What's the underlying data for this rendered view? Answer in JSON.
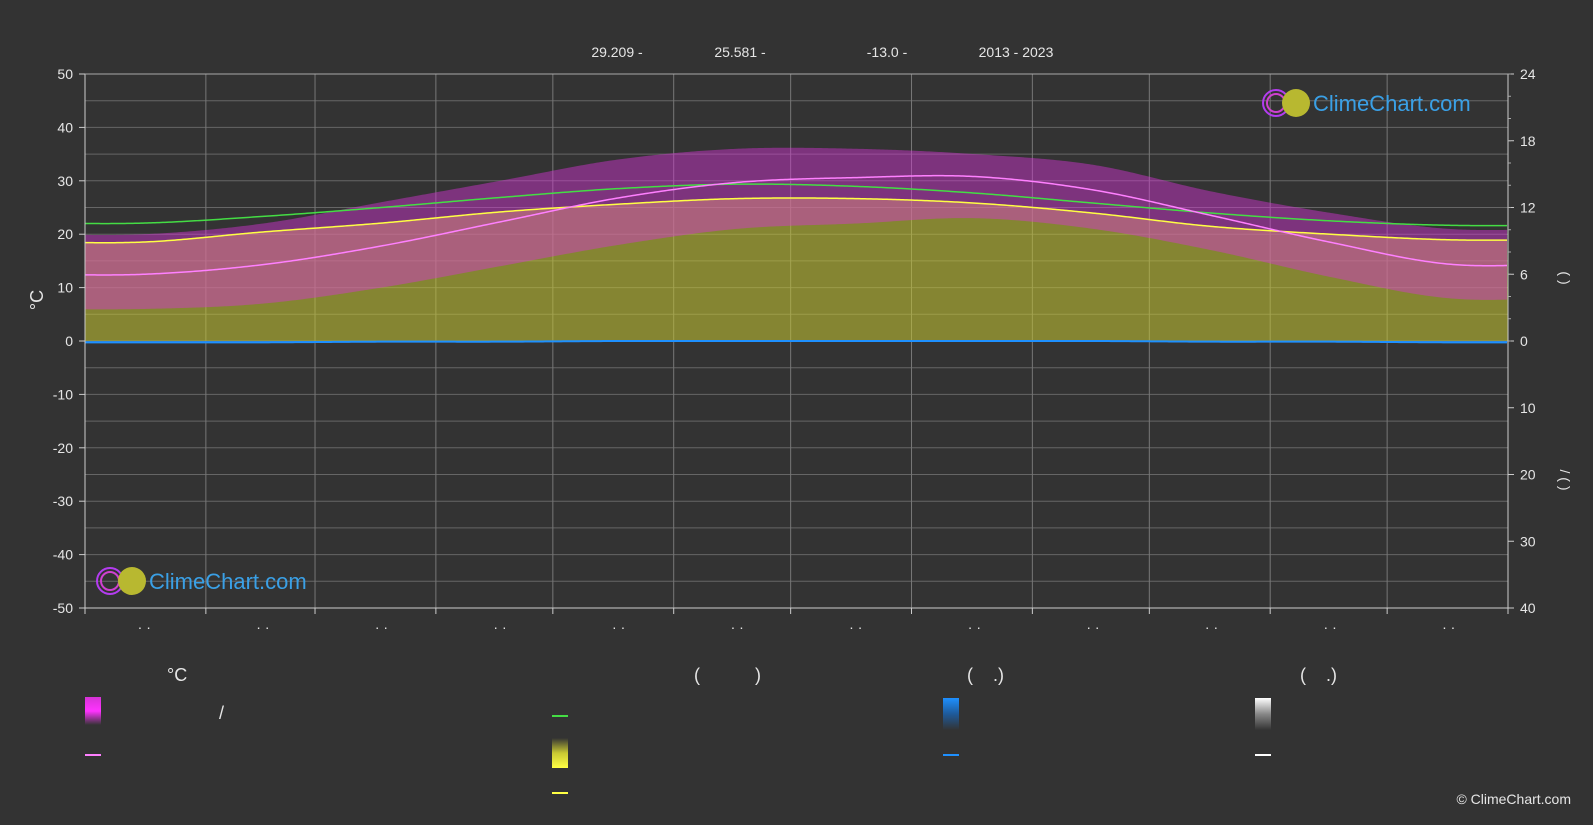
{
  "header": {
    "latitude": "29.209 -",
    "longitude": "25.581 -",
    "elevation": "-13.0 -",
    "years": "2013 - 2023"
  },
  "logo": {
    "text": "ClimeChart.com"
  },
  "copyright": "© ClimeChart.com",
  "legend": {
    "col1_title": "°C",
    "col1_slash": "/",
    "col2_title": "(           )",
    "col3_title": "(    .)",
    "col4_title": "(    .)"
  },
  "colors": {
    "background": "#333333",
    "temp_range": "#d633d6",
    "temp_mean": "#ff80ff",
    "daylight": "#44dd44",
    "sunshine": "#c8c832",
    "sunshine_mean": "#ffff44",
    "rain": "#1e90ff",
    "snow": "#ffffff"
  },
  "chart_data": {
    "type": "line",
    "ylabel": "°C",
    "y_left": {
      "min": -50,
      "max": 50,
      "ticks": [
        50,
        40,
        30,
        20,
        10,
        0,
        -10,
        -20,
        -30,
        -40,
        -50
      ]
    },
    "y_right_top": {
      "min": 0,
      "max": 24,
      "ticks": [
        24,
        18,
        12,
        6,
        0
      ]
    },
    "y_right_bottom": {
      "min": 0,
      "max": 40,
      "ticks": [
        10,
        20,
        30,
        40
      ]
    },
    "right_axis_label_top": "(   )",
    "right_axis_label_bottom": "/   (  )",
    "x_ticks": [
      "· ·",
      "· ·",
      "· ·",
      "· ·",
      "· ·",
      "· ·",
      "· ·",
      "· ·",
      "· ·",
      "· ·",
      "· ·",
      "· ·"
    ],
    "months": 12,
    "series": [
      {
        "key": "daylight_hours",
        "axis": "right_top",
        "values": [
          10.6,
          11.2,
          12.0,
          12.9,
          13.7,
          14.1,
          13.9,
          13.3,
          12.4,
          11.5,
          10.8,
          10.4
        ]
      },
      {
        "key": "sunshine_hours",
        "axis": "right_top",
        "values": [
          8.9,
          9.8,
          10.6,
          11.6,
          12.3,
          12.8,
          12.8,
          12.4,
          11.5,
          10.3,
          9.6,
          9.1
        ]
      },
      {
        "key": "mean_temp",
        "axis": "left",
        "values": [
          12.5,
          14.3,
          17.8,
          22.3,
          26.8,
          29.7,
          30.6,
          30.8,
          28.3,
          23.5,
          18.5,
          14.4
        ]
      },
      {
        "key": "temp_max_band",
        "axis": "left",
        "values": [
          20,
          22,
          26,
          30,
          34,
          36,
          36,
          35,
          33,
          28,
          24,
          21
        ]
      },
      {
        "key": "temp_min_band",
        "axis": "left",
        "values": [
          6,
          7,
          10,
          14,
          18,
          21,
          22,
          23,
          21,
          17,
          12,
          8
        ]
      },
      {
        "key": "precipitation_mean",
        "axis": "right_bottom",
        "values": [
          0.2,
          0.2,
          0.1,
          0.1,
          0,
          0,
          0,
          0,
          0,
          0.1,
          0.1,
          0.2
        ]
      }
    ]
  }
}
